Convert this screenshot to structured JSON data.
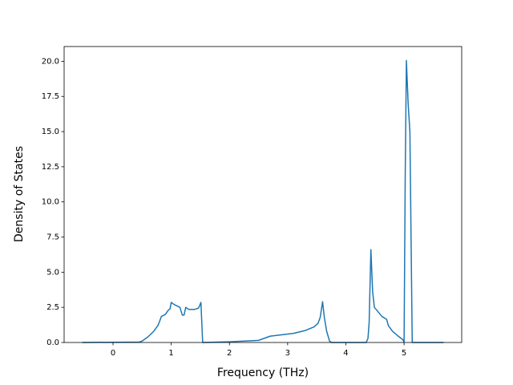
{
  "chart_data": {
    "type": "line",
    "xlabel": "Frequency (THz)",
    "ylabel": "Density of States",
    "xlim": [
      -0.84,
      5.99
    ],
    "ylim": [
      0,
      21.05
    ],
    "xticks": [
      0,
      1,
      2,
      3,
      4,
      5
    ],
    "yticks": [
      {
        "value": 0,
        "label": "0.0"
      },
      {
        "value": 2.5,
        "label": "2.5"
      },
      {
        "value": 5,
        "label": "5.0"
      },
      {
        "value": 7.5,
        "label": "7.5"
      },
      {
        "value": 10,
        "label": "10.0"
      },
      {
        "value": 12.5,
        "label": "12.5"
      },
      {
        "value": 15,
        "label": "15.0"
      },
      {
        "value": 17.5,
        "label": "17.5"
      },
      {
        "value": 20,
        "label": "20.0"
      }
    ],
    "grid": false,
    "x": [
      -0.53,
      0.45,
      0.5,
      0.6,
      0.7,
      0.77,
      0.8,
      0.83,
      0.9,
      0.95,
      0.98,
      1.0,
      1.05,
      1.1,
      1.15,
      1.19,
      1.22,
      1.25,
      1.3,
      1.4,
      1.47,
      1.51,
      1.54,
      2.0,
      2.5,
      2.6,
      2.7,
      2.9,
      3.1,
      3.3,
      3.45,
      3.52,
      3.56,
      3.6,
      3.63,
      3.67,
      3.72,
      3.75,
      4.35,
      4.38,
      4.4,
      4.43,
      4.46,
      4.49,
      4.55,
      4.62,
      4.7,
      4.73,
      4.8,
      4.9,
      4.98,
      5.0,
      5.02,
      5.04,
      5.07,
      5.1,
      5.14,
      5.68
    ],
    "series": [
      {
        "color": "#1f77b4",
        "values": [
          0,
          0.03,
          0.1,
          0.4,
          0.8,
          1.2,
          1.5,
          1.85,
          2.0,
          2.3,
          2.4,
          2.85,
          2.7,
          2.6,
          2.5,
          1.95,
          1.95,
          2.5,
          2.35,
          2.35,
          2.45,
          2.85,
          0,
          0.05,
          0.15,
          0.3,
          0.45,
          0.55,
          0.65,
          0.85,
          1.1,
          1.35,
          1.8,
          2.9,
          1.8,
          0.8,
          0.1,
          0,
          0,
          0.3,
          1.4,
          6.6,
          3.6,
          2.5,
          2.2,
          1.85,
          1.65,
          1.2,
          0.8,
          0.45,
          0.2,
          0,
          12,
          20.05,
          17,
          15,
          0,
          0
        ]
      }
    ]
  }
}
